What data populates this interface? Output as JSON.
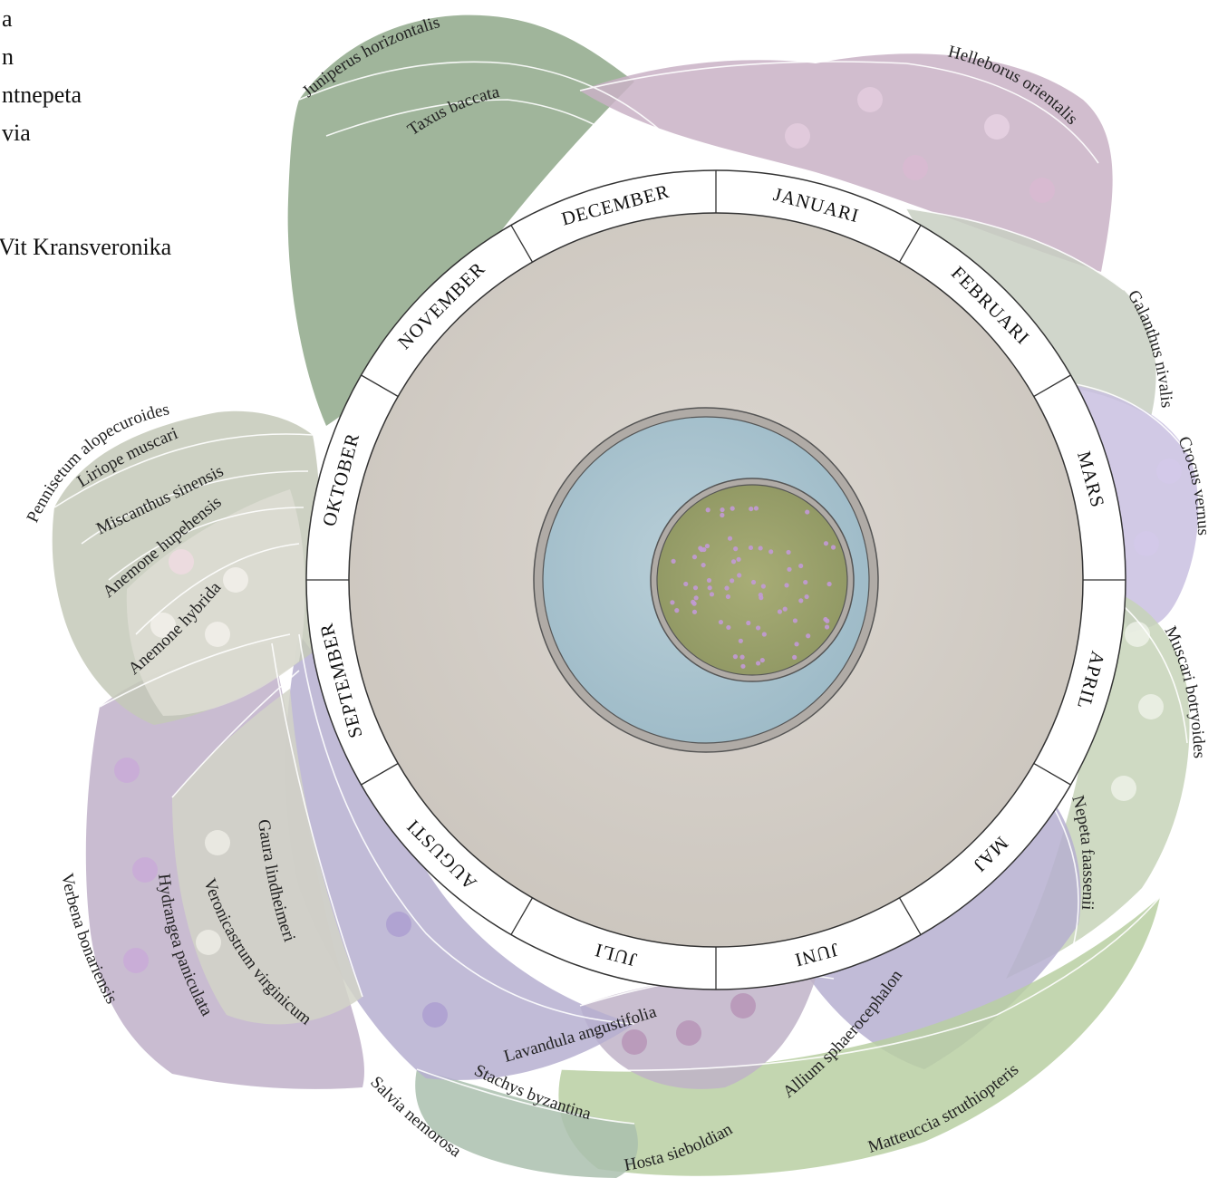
{
  "legend": {
    "line1": "a",
    "line2": "n",
    "line3": "ntnepeta",
    "line4": "via",
    "line5": "Vit Kransveronika"
  },
  "months": [
    "JANUARI",
    "FEBRUARI",
    "MARS",
    "APRIL",
    "MAJ",
    "JUNI",
    "JULI",
    "AUGUSTI",
    "SEPTEMBER",
    "OKTOBER",
    "NOVEMBER",
    "DECEMBER"
  ],
  "plants": {
    "juniperus": "Juniperus horizontalis",
    "taxus": "Taxus baccata",
    "helleborus": "Helleborus orientalis",
    "galanthus": "Galanthus nivalis",
    "crocus": "Crocus vernus",
    "muscari": "Muscari botryoides",
    "nepeta": "Nepeta faassenii",
    "matteuccia": "Matteuccia struthiopteris",
    "allium": "Allium sphaerocephalon",
    "hosta": "Hosta sieboldiana",
    "stachys": "Stachys byzantina",
    "lavandula": "Lavandula angustifolia",
    "salvia": "Salvia nemorosa",
    "veronicastrum": "Veronicastrum virginicum",
    "gaura": "Gaura lindheimeri",
    "hydrangea": "Hydrangea paniculata",
    "verbena": "Verbena bonariensis",
    "anemone_hybrida": "Anemone hybrida",
    "anemone_hupehensis": "Anemone hupehensis",
    "miscanthus": "Miscanthus sinensis",
    "liriope": "Liriope muscari",
    "pennisetum": "Pennisetum alopecuroides"
  },
  "colors": {
    "ring_line": "#333333",
    "stone": "#d3cec8",
    "water": "#a9c3cf",
    "lawn": "#9aa36a",
    "conifer": "#8fa88a",
    "hellebore": "#c9b2c6",
    "crocus": "#c9bfe0",
    "spring_white": "#c7d4b8",
    "lavender": "#b6afd0",
    "fern": "#b9cfa2",
    "verbena": "#bfb0c9",
    "autumn": "#c4c9b8"
  }
}
